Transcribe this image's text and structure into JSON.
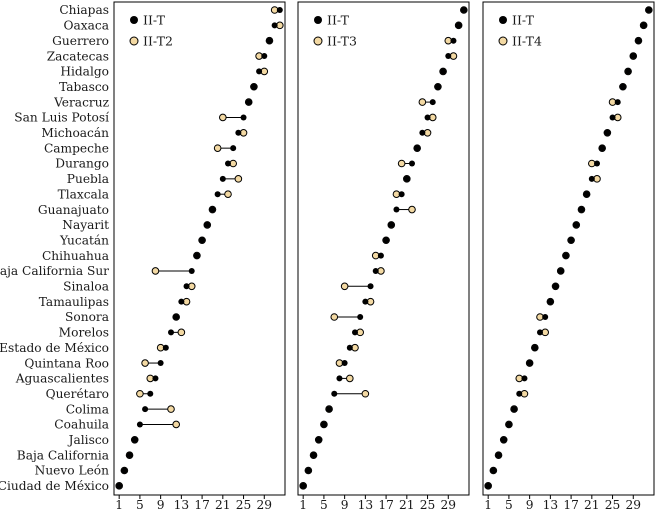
{
  "chart_data": {
    "type": "scatter",
    "states": [
      "Chiapas",
      "Oaxaca",
      "Guerrero",
      "Zacatecas",
      "Hidalgo",
      "Tabasco",
      "Veracruz",
      "San Luis Potosí",
      "Michoacán",
      "Campeche",
      "Durango",
      "Puebla",
      "Tlaxcala",
      "Guanajuato",
      "Nayarit",
      "Yucatán",
      "Chihuahua",
      "Baja California Sur",
      "Sinaloa",
      "Tamaulipas",
      "Sonora",
      "Morelos",
      "Estado de México",
      "Quintana Roo",
      "Aguascalientes",
      "Querétaro",
      "Colima",
      "Coahuila",
      "Jalisco",
      "Baja California",
      "Nuevo León",
      "Ciudad de México"
    ],
    "x_ticks": [
      "1",
      "5",
      "9",
      "13",
      "17",
      "21",
      "25",
      "29"
    ],
    "xlim": [
      0,
      33
    ],
    "panels": [
      {
        "legend": [
          {
            "label": "II-T"
          },
          {
            "label": "II-T2"
          }
        ],
        "base": [
          32,
          31,
          30,
          29,
          28,
          27,
          26,
          25,
          24,
          23,
          22,
          21,
          20,
          19,
          18,
          17,
          16,
          15,
          14,
          13,
          12,
          11,
          10,
          9,
          8,
          7,
          6,
          5,
          4,
          3,
          2,
          1
        ],
        "alt": [
          31,
          32,
          30,
          28,
          29,
          27,
          26,
          21,
          25,
          20,
          23,
          24,
          22,
          19,
          18,
          17,
          16,
          8,
          15,
          14,
          12,
          13,
          9,
          6,
          7,
          5,
          11,
          12,
          4,
          3,
          2,
          1
        ]
      },
      {
        "legend": [
          {
            "label": "II-T"
          },
          {
            "label": "II-T3"
          }
        ],
        "base": [
          32,
          31,
          30,
          29,
          28,
          27,
          26,
          25,
          24,
          23,
          22,
          21,
          20,
          19,
          18,
          17,
          16,
          15,
          14,
          13,
          12,
          11,
          10,
          9,
          8,
          7,
          6,
          5,
          4,
          3,
          2,
          1
        ],
        "alt": [
          32,
          31,
          29,
          30,
          28,
          27,
          24,
          26,
          25,
          23,
          20,
          21,
          19,
          22,
          18,
          17,
          15,
          16,
          9,
          14,
          7,
          12,
          11,
          8,
          10,
          13,
          6,
          5,
          4,
          3,
          2,
          1
        ]
      },
      {
        "legend": [
          {
            "label": "II-T"
          },
          {
            "label": "II-T4"
          }
        ],
        "base": [
          32,
          31,
          30,
          29,
          28,
          27,
          26,
          25,
          24,
          23,
          22,
          21,
          20,
          19,
          18,
          17,
          16,
          15,
          14,
          13,
          12,
          11,
          10,
          9,
          8,
          7,
          6,
          5,
          4,
          3,
          2,
          1
        ],
        "alt": [
          32,
          31,
          30,
          29,
          28,
          27,
          25,
          26,
          24,
          23,
          21,
          22,
          20,
          19,
          18,
          17,
          16,
          15,
          14,
          13,
          11,
          12,
          10,
          9,
          7,
          8,
          6,
          5,
          4,
          3,
          2,
          1
        ]
      }
    ]
  },
  "colors": {
    "base": "#000000",
    "alt": "#f3d9a3",
    "frame": "#000000"
  }
}
